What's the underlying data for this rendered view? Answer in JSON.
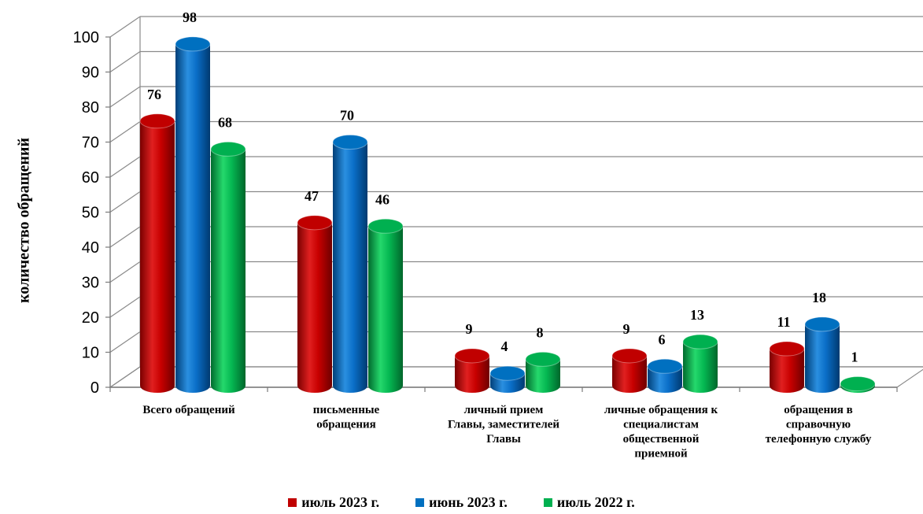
{
  "chart_data": {
    "type": "bar",
    "title": "",
    "ylabel": "количество обращений",
    "xlabel": "",
    "ylim": [
      0,
      100
    ],
    "yticks": [
      0,
      10,
      20,
      30,
      40,
      50,
      60,
      70,
      80,
      90,
      100
    ],
    "grid": true,
    "legend_position": "bottom",
    "categories": [
      [
        "Всего обращений"
      ],
      [
        "письменные",
        "обращения"
      ],
      [
        "личный прием",
        "Главы, заместителей",
        "Главы"
      ],
      [
        "личные обращения к",
        "специалистам",
        "общественной",
        "приемной"
      ],
      [
        "обращения в",
        "справочную",
        "телефонную службу"
      ]
    ],
    "series": [
      {
        "name": "июль 2023 г.",
        "color": "#c00000",
        "values": [
          76,
          47,
          9,
          9,
          11
        ]
      },
      {
        "name": "июнь 2023 г.",
        "color": "#0070c0",
        "values": [
          98,
          70,
          4,
          6,
          18
        ]
      },
      {
        "name": "июль 2022 г.",
        "color": "#00b050",
        "values": [
          68,
          46,
          8,
          13,
          1
        ]
      }
    ]
  }
}
